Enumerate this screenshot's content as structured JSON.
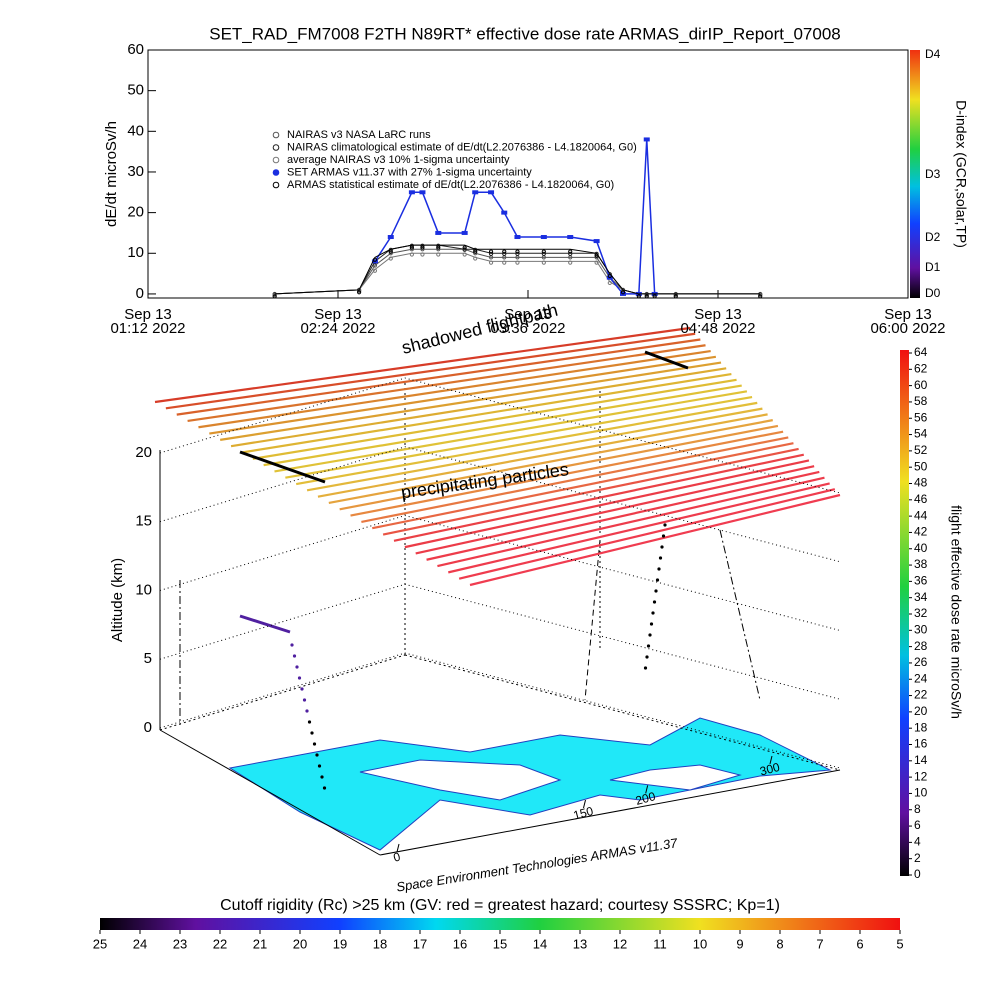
{
  "title": "SET_RAD_FM7008  F2TH N89RT* effective dose rate ARMAS_dirIP_Report_07008",
  "chart_data": [
    {
      "type": "line",
      "y_label": "dE/dt microSv/h",
      "ylim": [
        -1,
        60
      ],
      "yticks": [
        0,
        10,
        20,
        30,
        40,
        50,
        60
      ],
      "xlim": [
        0,
        288
      ],
      "xticks": [
        {
          "value": 0,
          "label": "Sep 13\n01:12 2022"
        },
        {
          "value": 72,
          "label": "Sep 13\n02:24 2022"
        },
        {
          "value": 144,
          "label": "Sep 13\n03:36 2022"
        },
        {
          "value": 216,
          "label": "Sep 13\n04:48 2022"
        },
        {
          "value": 288,
          "label": "Sep 13\n06:00 2022"
        }
      ],
      "x": [
        48,
        80,
        86,
        92,
        100,
        104,
        110,
        120,
        124,
        130,
        135,
        140,
        150,
        160,
        170,
        175,
        180,
        186,
        189,
        192,
        200,
        232
      ],
      "series": [
        {
          "name": "NAIRAS v3 NASA LaRC runs",
          "color": "#555555",
          "values": [
            0,
            1,
            7,
            10,
            11,
            11,
            11,
            11,
            10,
            9,
            9,
            9,
            9,
            9,
            9,
            4,
            1,
            0,
            0,
            0,
            0,
            0
          ]
        },
        {
          "name": "NAIRAS climatological estimate of dE/dt(L2.2076386 - L4.1820064, G0)",
          "color": "#222222",
          "values": [
            0,
            1,
            8,
            11,
            12,
            12,
            12,
            11,
            11,
            10,
            10,
            10,
            10,
            10,
            10,
            5,
            1,
            0,
            0,
            0,
            0,
            0
          ]
        },
        {
          "name": "average NAIRAS v3 10% 1-sigma uncertainty",
          "color": "#777777",
          "values": [
            0,
            1,
            6,
            9,
            10,
            10,
            10,
            10,
            9,
            8,
            8,
            8,
            8,
            8,
            8,
            3,
            1,
            0,
            0,
            0,
            0,
            0
          ]
        },
        {
          "name": "SET ARMAS v11.37 with 27% 1-sigma uncertainty",
          "color": "#1a2ee0",
          "values": [
            null,
            null,
            8,
            14,
            25,
            25,
            15,
            15,
            25,
            25,
            20,
            14,
            14,
            14,
            13,
            4,
            0,
            0,
            38,
            0,
            null,
            null
          ]
        },
        {
          "name": "ARMAS statistical estimate of dE/dt(L2.2076386 - L4.1820064, G0)",
          "color": "#000000",
          "values": [
            0,
            1,
            9,
            11,
            12,
            12,
            12,
            12,
            11,
            11,
            11,
            11,
            11,
            11,
            10,
            5,
            1,
            0,
            0,
            0,
            0,
            0
          ]
        }
      ],
      "colorbar": {
        "label": "D-index (GCR,solar,TP)",
        "labels": [
          "D0",
          "D1",
          "D2",
          "D3",
          "D4"
        ]
      }
    },
    {
      "type": "surface3d",
      "z_label": "Altitude (km)",
      "zlim": [
        0,
        20
      ],
      "zticks": [
        0,
        5,
        10,
        15,
        20
      ],
      "xlim": [
        0,
        300
      ],
      "xticks": [
        0,
        150,
        200,
        300
      ],
      "annotations": [
        "shadowed flightpath",
        "precipitating particles",
        "Space Environment Technologies ARMAS v11.37"
      ],
      "colorbar": {
        "label": "flight effective dose rate microSv/h",
        "lim": [
          0,
          64
        ],
        "ticks": [
          0,
          2,
          4,
          6,
          8,
          10,
          12,
          14,
          16,
          18,
          20,
          22,
          24,
          26,
          28,
          30,
          32,
          34,
          36,
          38,
          40,
          42,
          44,
          46,
          48,
          50,
          52,
          54,
          56,
          58,
          60,
          62,
          64
        ]
      },
      "rc_colorbar": {
        "label": "Cutoff rigidity (Rc) >25 km (GV: red = greatest hazard; courtesy SSSRC; Kp=1)",
        "lim": [
          25,
          5
        ],
        "ticks": [
          25,
          24,
          23,
          22,
          21,
          20,
          19,
          18,
          17,
          16,
          15,
          14,
          13,
          12,
          11,
          10,
          9,
          8,
          7,
          6,
          5
        ]
      }
    }
  ]
}
